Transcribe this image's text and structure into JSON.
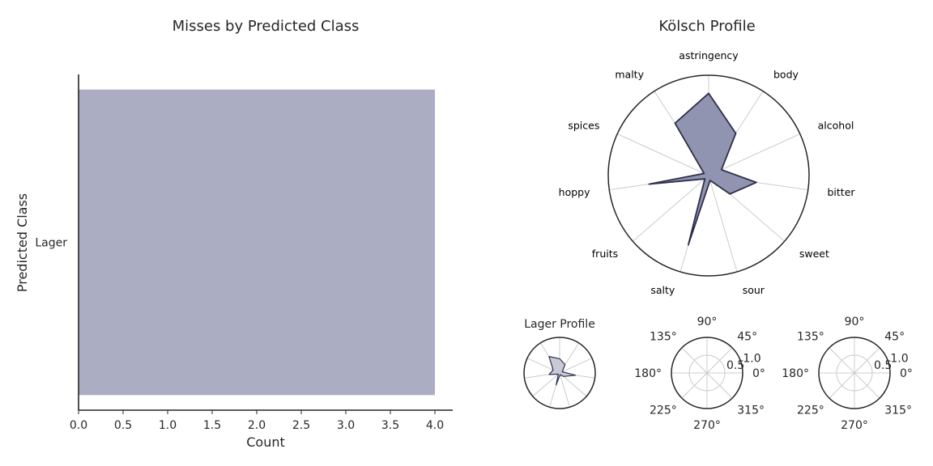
{
  "colors": {
    "bar": "#abaec3",
    "radar_fill": "#9194b0",
    "radar_line": "#2d2f4a",
    "small_radar_fill": "#c9cad8",
    "grid": "#cccccc",
    "axis": "#262626"
  },
  "chart_data": [
    {
      "type": "bar",
      "orientation": "horizontal",
      "title": "Misses by Predicted Class",
      "xlabel": "Count",
      "ylabel": "Predicted Class",
      "categories": [
        "Lager"
      ],
      "values": [
        4.0
      ],
      "xlim": [
        0,
        4.2
      ],
      "xticks": [
        "0.0",
        "0.5",
        "1.0",
        "1.5",
        "2.0",
        "2.5",
        "3.0",
        "3.5",
        "4.0"
      ],
      "grid": false
    },
    {
      "type": "radar",
      "title": "Kölsch Profile",
      "axes": [
        "astringency",
        "body",
        "alcohol",
        "bitter",
        "sweet",
        "sour",
        "salty",
        "fruits",
        "hoppy",
        "spices",
        "malty"
      ],
      "values": [
        0.82,
        0.5,
        0.14,
        0.48,
        0.28,
        0.05,
        0.72,
        0.05,
        0.6,
        0.05,
        0.62
      ],
      "rmax": 1.0,
      "grid": true
    },
    {
      "type": "radar",
      "title": "Lager Profile",
      "axes": [
        "astringency",
        "body",
        "alcohol",
        "bitter",
        "sweet",
        "sour",
        "salty",
        "fruits",
        "hoppy",
        "spices",
        "malty"
      ],
      "values": [
        0.4,
        0.28,
        0.08,
        0.45,
        0.15,
        0.05,
        0.35,
        0.05,
        0.3,
        0.2,
        0.55
      ],
      "rmax": 1.0,
      "grid": true
    },
    {
      "type": "polar",
      "title": "",
      "angle_labels": [
        "0°",
        "45°",
        "90°",
        "135°",
        "180°",
        "225°",
        "270°",
        "315°"
      ],
      "radial_ticks": [
        "0.5",
        "1.0"
      ],
      "series": []
    },
    {
      "type": "polar",
      "title": "",
      "angle_labels": [
        "0°",
        "45°",
        "90°",
        "135°",
        "180°",
        "225°",
        "270°",
        "315°"
      ],
      "radial_ticks": [
        "0.5",
        "1.0"
      ],
      "series": []
    }
  ]
}
